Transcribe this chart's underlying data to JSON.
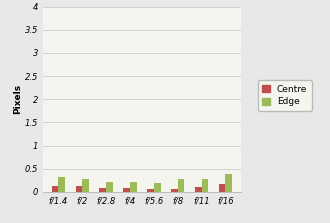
{
  "categories": [
    "f/1.4",
    "f/2",
    "f/2.8",
    "f/4",
    "f/5.6",
    "f/8",
    "f/11",
    "f/16"
  ],
  "centre_values": [
    0.13,
    0.12,
    0.09,
    0.08,
    0.07,
    0.06,
    0.1,
    0.17
  ],
  "edge_values": [
    0.32,
    0.28,
    0.22,
    0.22,
    0.18,
    0.27,
    0.27,
    0.38
  ],
  "centre_color": "#C0504D",
  "edge_color": "#9BBB59",
  "ylabel": "Pixels",
  "ylim": [
    0,
    4
  ],
  "yticks": [
    0,
    0.5,
    1,
    1.5,
    2,
    2.5,
    3,
    3.5,
    4
  ],
  "legend_labels": [
    "Centre",
    "Edge"
  ],
  "bar_width": 0.28,
  "figure_bg": "#E8E8E8",
  "plot_bg": "#F5F5F0",
  "grid_color": "#CCCCCC",
  "axis_fontsize": 6.5,
  "tick_fontsize": 6.0,
  "legend_fontsize": 6.5
}
